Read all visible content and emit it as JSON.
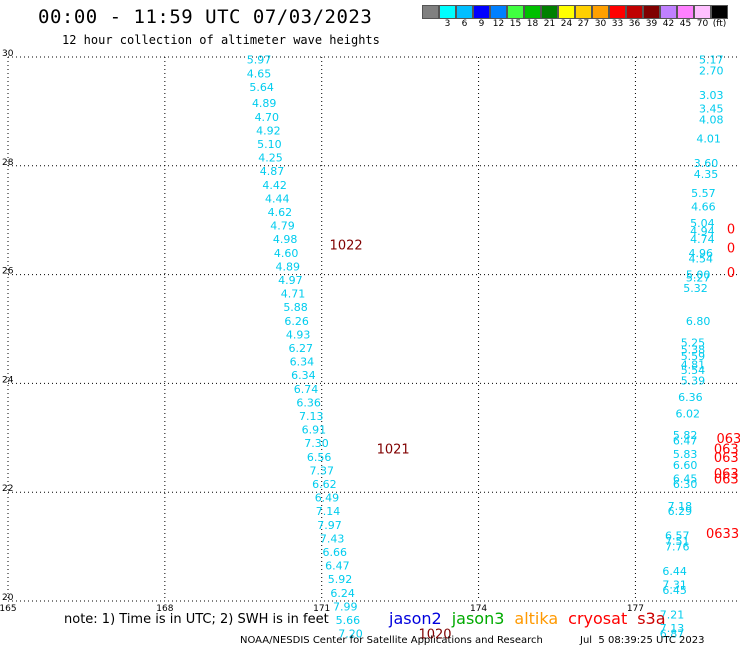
{
  "header": {
    "title": "00:00 - 11:59 UTC 07/03/2023",
    "subtitle": "12 hour collection of altimeter wave heights"
  },
  "legend": {
    "unit": "(ft)",
    "items": [
      {
        "color": "#808080",
        "label": ""
      },
      {
        "color": "#00ffff",
        "label": "3"
      },
      {
        "color": "#00bfff",
        "label": "6"
      },
      {
        "color": "#0000ff",
        "label": "9"
      },
      {
        "color": "#0080ff",
        "label": "12"
      },
      {
        "color": "#40ff40",
        "label": "15"
      },
      {
        "color": "#00c000",
        "label": "18"
      },
      {
        "color": "#008000",
        "label": "21"
      },
      {
        "color": "#ffff00",
        "label": "24"
      },
      {
        "color": "#ffd000",
        "label": "27"
      },
      {
        "color": "#ffa000",
        "label": "30"
      },
      {
        "color": "#ff0000",
        "label": "33"
      },
      {
        "color": "#c00000",
        "label": "36"
      },
      {
        "color": "#800000",
        "label": "39"
      },
      {
        "color": "#c080ff",
        "label": "42"
      },
      {
        "color": "#ff80ff",
        "label": "45"
      },
      {
        "color": "#ffc0ff",
        "label": "70"
      },
      {
        "color": "#000000",
        "label": "(ft)"
      }
    ]
  },
  "footer": {
    "note": "note: 1) Time is in UTC; 2) SWH is in feet",
    "satellites": [
      {
        "name": "jason2",
        "color": "#0000dd"
      },
      {
        "name": "jason3",
        "color": "#00aa00"
      },
      {
        "name": "altika",
        "color": "#ff9900"
      },
      {
        "name": "cryosat",
        "color": "#ff0000"
      },
      {
        "name": "s3a",
        "color": "#cc0000"
      }
    ],
    "credit": "NOAA/NESDIS Center for Satellite Applications and Research",
    "date": "Jul  5 08:39:25 UTC 2023"
  },
  "chart_data": {
    "type": "scatter",
    "xlim": [
      165,
      179
    ],
    "ylim": [
      20,
      30
    ],
    "x_ticks": [
      165,
      168,
      171,
      174,
      177
    ],
    "y_ticks": [
      20,
      22,
      24,
      26,
      28,
      30
    ],
    "grid": true,
    "colors": {
      "swh": "#00ccee",
      "time": "#800000",
      "time_red": "#ff0000",
      "grid": "#000000"
    },
    "series": [
      {
        "points": [
          {
            "x": 169.8,
            "y": 29.95,
            "v": "5.97"
          },
          {
            "x": 169.8,
            "y": 29.7,
            "v": "4.65"
          },
          {
            "x": 169.85,
            "y": 29.45,
            "v": "5.64"
          },
          {
            "x": 169.9,
            "y": 29.15,
            "v": "4.89"
          },
          {
            "x": 169.95,
            "y": 28.9,
            "v": "4.70"
          },
          {
            "x": 169.98,
            "y": 28.65,
            "v": "4.92"
          },
          {
            "x": 170.0,
            "y": 28.4,
            "v": "5.10"
          },
          {
            "x": 170.02,
            "y": 28.15,
            "v": "4.25"
          },
          {
            "x": 170.05,
            "y": 27.9,
            "v": "4.87"
          },
          {
            "x": 170.1,
            "y": 27.65,
            "v": "4.42"
          },
          {
            "x": 170.15,
            "y": 27.4,
            "v": "4.44"
          },
          {
            "x": 170.2,
            "y": 27.15,
            "v": "4.62"
          },
          {
            "x": 170.25,
            "y": 26.9,
            "v": "4.79"
          },
          {
            "x": 170.3,
            "y": 26.65,
            "v": "4.98"
          },
          {
            "x": 170.32,
            "y": 26.4,
            "v": "4.60"
          },
          {
            "x": 170.35,
            "y": 26.15,
            "v": "4.89"
          },
          {
            "x": 170.4,
            "y": 25.9,
            "v": "4.97"
          },
          {
            "x": 170.45,
            "y": 25.65,
            "v": "4.71"
          },
          {
            "x": 170.5,
            "y": 25.4,
            "v": "5.88"
          },
          {
            "x": 170.52,
            "y": 25.15,
            "v": "6.26"
          },
          {
            "x": 170.55,
            "y": 24.9,
            "v": "4.93"
          },
          {
            "x": 170.6,
            "y": 24.65,
            "v": "6.27"
          },
          {
            "x": 170.62,
            "y": 24.4,
            "v": "6.34"
          },
          {
            "x": 170.65,
            "y": 24.15,
            "v": "6.34"
          },
          {
            "x": 170.7,
            "y": 23.9,
            "v": "6.74"
          },
          {
            "x": 170.75,
            "y": 23.65,
            "v": "6.36"
          },
          {
            "x": 170.8,
            "y": 23.4,
            "v": "7.13"
          },
          {
            "x": 170.85,
            "y": 23.15,
            "v": "6.91"
          },
          {
            "x": 170.9,
            "y": 22.9,
            "v": "7.30"
          },
          {
            "x": 170.95,
            "y": 22.65,
            "v": "6.56"
          },
          {
            "x": 171.0,
            "y": 22.4,
            "v": "7.37"
          },
          {
            "x": 171.05,
            "y": 22.15,
            "v": "6.62"
          },
          {
            "x": 171.1,
            "y": 21.9,
            "v": "6.49"
          },
          {
            "x": 171.12,
            "y": 21.65,
            "v": "7.14"
          },
          {
            "x": 171.15,
            "y": 21.4,
            "v": "7.97"
          },
          {
            "x": 171.2,
            "y": 21.15,
            "v": "7.43"
          },
          {
            "x": 171.25,
            "y": 20.9,
            "v": "6.66"
          },
          {
            "x": 171.3,
            "y": 20.65,
            "v": "6.47"
          },
          {
            "x": 171.35,
            "y": 20.4,
            "v": "5.92"
          },
          {
            "x": 171.4,
            "y": 20.15,
            "v": "6.24"
          },
          {
            "x": 171.45,
            "y": 19.9,
            "v": "7.99"
          },
          {
            "x": 171.5,
            "y": 19.65,
            "v": "5.66"
          },
          {
            "x": 171.55,
            "y": 19.4,
            "v": "7.20"
          }
        ]
      },
      {
        "points": [
          {
            "x": 178.45,
            "y": 29.95,
            "v": "5.17"
          },
          {
            "x": 178.45,
            "y": 29.75,
            "v": "2.70"
          },
          {
            "x": 178.45,
            "y": 29.3,
            "v": "3.03"
          },
          {
            "x": 178.45,
            "y": 29.05,
            "v": "3.45"
          },
          {
            "x": 178.45,
            "y": 28.85,
            "v": "4.08"
          },
          {
            "x": 178.4,
            "y": 28.5,
            "v": "4.01"
          },
          {
            "x": 178.35,
            "y": 28.05,
            "v": "3.60"
          },
          {
            "x": 178.35,
            "y": 27.85,
            "v": "4.35"
          },
          {
            "x": 178.3,
            "y": 27.5,
            "v": "5.57"
          },
          {
            "x": 178.3,
            "y": 27.25,
            "v": "4.66"
          },
          {
            "x": 178.28,
            "y": 26.95,
            "v": "5.04"
          },
          {
            "x": 178.28,
            "y": 26.8,
            "v": "4.94"
          },
          {
            "x": 178.28,
            "y": 26.65,
            "v": "4.74"
          },
          {
            "x": 178.25,
            "y": 26.4,
            "v": "4.96"
          },
          {
            "x": 178.25,
            "y": 26.3,
            "v": "4.54"
          },
          {
            "x": 178.2,
            "y": 26.0,
            "v": "5.00"
          },
          {
            "x": 178.2,
            "y": 25.95,
            "v": "5.27"
          },
          {
            "x": 178.15,
            "y": 25.75,
            "v": "5.32"
          },
          {
            "x": 178.2,
            "y": 25.15,
            "v": "6.80"
          },
          {
            "x": 178.1,
            "y": 24.75,
            "v": "5.25"
          },
          {
            "x": 178.1,
            "y": 24.62,
            "v": "5.38"
          },
          {
            "x": 178.1,
            "y": 24.5,
            "v": "5.59"
          },
          {
            "x": 178.1,
            "y": 24.35,
            "v": "4.81"
          },
          {
            "x": 178.1,
            "y": 24.25,
            "v": "5.54"
          },
          {
            "x": 178.1,
            "y": 24.05,
            "v": "5.39"
          },
          {
            "x": 178.05,
            "y": 23.75,
            "v": "6.36"
          },
          {
            "x": 178.0,
            "y": 23.45,
            "v": "6.02"
          },
          {
            "x": 177.95,
            "y": 23.05,
            "v": "5.82"
          },
          {
            "x": 177.95,
            "y": 22.95,
            "v": "6.47"
          },
          {
            "x": 177.95,
            "y": 22.7,
            "v": "5.83"
          },
          {
            "x": 177.95,
            "y": 22.5,
            "v": "6.60"
          },
          {
            "x": 177.95,
            "y": 22.25,
            "v": "6.45"
          },
          {
            "x": 177.95,
            "y": 22.15,
            "v": "6.30"
          },
          {
            "x": 177.85,
            "y": 21.75,
            "v": "7.18"
          },
          {
            "x": 177.85,
            "y": 21.65,
            "v": "6.29"
          },
          {
            "x": 177.8,
            "y": 21.2,
            "v": "6.57"
          },
          {
            "x": 177.8,
            "y": 21.1,
            "v": "7.51"
          },
          {
            "x": 177.8,
            "y": 21.0,
            "v": "7.76"
          },
          {
            "x": 177.75,
            "y": 20.55,
            "v": "6.44"
          },
          {
            "x": 177.75,
            "y": 20.3,
            "v": "7.31"
          },
          {
            "x": 177.75,
            "y": 20.2,
            "v": "6.45"
          },
          {
            "x": 177.7,
            "y": 19.75,
            "v": "7.21"
          },
          {
            "x": 177.7,
            "y": 19.5,
            "v": "7.13"
          },
          {
            "x": 177.7,
            "y": 19.4,
            "v": "6.87"
          }
        ]
      }
    ],
    "time_labels": [
      {
        "x": 171.15,
        "y": 26.55,
        "label": "1022",
        "color": "time"
      },
      {
        "x": 172.05,
        "y": 22.8,
        "label": "1021",
        "color": "time"
      },
      {
        "x": 172.85,
        "y": 19.4,
        "label": "1020",
        "color": "time"
      },
      {
        "x": 178.75,
        "y": 26.85,
        "label": "0",
        "color": "time_red"
      },
      {
        "x": 178.75,
        "y": 26.5,
        "label": "0",
        "color": "time_red"
      },
      {
        "x": 178.75,
        "y": 26.05,
        "label": "0",
        "color": "time_red"
      },
      {
        "x": 178.55,
        "y": 23.0,
        "label": "063",
        "color": "time_red"
      },
      {
        "x": 178.5,
        "y": 22.8,
        "label": "063",
        "color": "time_red"
      },
      {
        "x": 178.5,
        "y": 22.65,
        "label": "063",
        "color": "time_red"
      },
      {
        "x": 178.5,
        "y": 22.35,
        "label": "063",
        "color": "time_red"
      },
      {
        "x": 178.5,
        "y": 22.25,
        "label": "063",
        "color": "time_red"
      },
      {
        "x": 178.35,
        "y": 21.25,
        "label": "0633",
        "color": "time_red"
      }
    ]
  }
}
